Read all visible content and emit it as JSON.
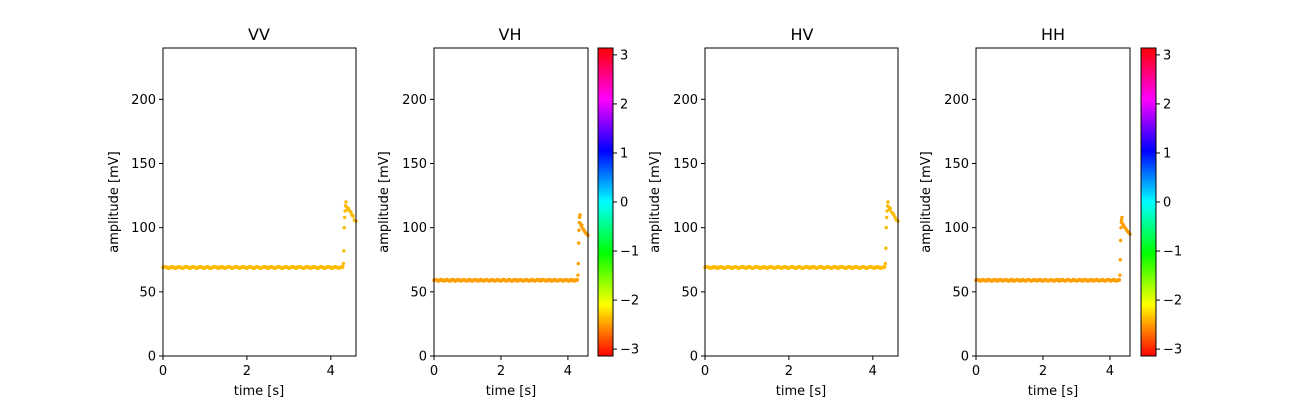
{
  "chart_data": [
    {
      "type": "scatter",
      "title": "VV",
      "xlabel": "time [s]",
      "ylabel": "amplitude [mV]",
      "xlim": [
        0,
        4.6
      ],
      "ylim": [
        0,
        240
      ],
      "xticks": [
        "0",
        "2",
        "4"
      ],
      "yticks": [
        "0",
        "50",
        "100",
        "150",
        "200"
      ],
      "xtick_values": [
        0,
        2,
        4
      ],
      "ytick_values": [
        0,
        50,
        100,
        150,
        200
      ],
      "grid": false,
      "point_color": "#fcbb00",
      "baseline": 69,
      "points": [
        [
          0.0,
          69
        ],
        [
          0.1,
          69.2
        ],
        [
          0.2,
          68.8
        ],
        [
          0.3,
          69.1
        ],
        [
          0.4,
          69.0
        ],
        [
          0.5,
          68.7
        ],
        [
          0.6,
          69.3
        ],
        [
          0.7,
          69.0
        ],
        [
          0.8,
          68.9
        ],
        [
          0.9,
          69.2
        ],
        [
          1.0,
          69.0
        ],
        [
          1.1,
          68.6
        ],
        [
          1.2,
          69.4
        ],
        [
          1.3,
          69.1
        ],
        [
          1.4,
          68.8
        ],
        [
          1.5,
          69.0
        ],
        [
          1.6,
          69.3
        ],
        [
          1.7,
          68.9
        ],
        [
          1.8,
          69.1
        ],
        [
          1.9,
          69.0
        ],
        [
          2.0,
          68.8
        ],
        [
          2.1,
          69.2
        ],
        [
          2.2,
          69.0
        ],
        [
          2.3,
          68.7
        ],
        [
          2.4,
          69.1
        ],
        [
          2.5,
          69.3
        ],
        [
          2.6,
          69.0
        ],
        [
          2.7,
          68.9
        ],
        [
          2.8,
          69.2
        ],
        [
          2.9,
          69.0
        ],
        [
          3.0,
          68.8
        ],
        [
          3.1,
          69.1
        ],
        [
          3.2,
          69.4
        ],
        [
          3.3,
          69.0
        ],
        [
          3.4,
          68.9
        ],
        [
          3.5,
          69.2
        ],
        [
          3.6,
          69.0
        ],
        [
          3.7,
          68.8
        ],
        [
          3.8,
          69.1
        ],
        [
          3.9,
          69.0
        ],
        [
          4.0,
          69.2
        ],
        [
          4.1,
          68.9
        ],
        [
          4.2,
          69.0
        ],
        [
          4.28,
          69.1
        ],
        [
          4.3,
          72
        ],
        [
          4.31,
          82
        ],
        [
          4.32,
          100
        ],
        [
          4.33,
          108
        ],
        [
          4.34,
          113
        ],
        [
          4.35,
          117
        ],
        [
          4.36,
          120
        ],
        [
          4.38,
          116
        ],
        [
          4.4,
          114
        ],
        [
          4.42,
          115
        ],
        [
          4.45,
          113
        ],
        [
          4.48,
          112
        ],
        [
          4.5,
          110
        ],
        [
          4.53,
          109
        ],
        [
          4.56,
          106
        ],
        [
          4.6,
          105
        ]
      ]
    },
    {
      "type": "scatter",
      "title": "VH",
      "xlabel": "time [s]",
      "ylabel": "amplitude [mV]",
      "xlim": [
        0,
        4.6
      ],
      "ylim": [
        0,
        240
      ],
      "xticks": [
        "0",
        "2",
        "4"
      ],
      "yticks": [
        "0",
        "50",
        "100",
        "150",
        "200"
      ],
      "xtick_values": [
        0,
        2,
        4
      ],
      "ytick_values": [
        0,
        50,
        100,
        150,
        200
      ],
      "grid": false,
      "point_color": "#ff9f00",
      "baseline": 59,
      "colorbar": {
        "range": [
          -3.14,
          3.14
        ],
        "ticks": [
          "3",
          "2",
          "1",
          "0",
          "−1",
          "−2",
          "−3"
        ],
        "tick_values": [
          3,
          2,
          1,
          0,
          -1,
          -2,
          -3
        ]
      },
      "points": [
        [
          0.0,
          59
        ],
        [
          0.1,
          59.2
        ],
        [
          0.2,
          58.8
        ],
        [
          0.3,
          59.1
        ],
        [
          0.4,
          59.0
        ],
        [
          0.5,
          58.7
        ],
        [
          0.6,
          59.3
        ],
        [
          0.7,
          59.0
        ],
        [
          0.8,
          58.9
        ],
        [
          0.9,
          59.2
        ],
        [
          1.0,
          59.0
        ],
        [
          1.1,
          58.6
        ],
        [
          1.2,
          59.4
        ],
        [
          1.3,
          59.1
        ],
        [
          1.4,
          58.8
        ],
        [
          1.5,
          59.0
        ],
        [
          1.6,
          59.3
        ],
        [
          1.7,
          58.9
        ],
        [
          1.8,
          59.1
        ],
        [
          1.9,
          59.0
        ],
        [
          2.0,
          58.8
        ],
        [
          2.1,
          59.2
        ],
        [
          2.2,
          59.0
        ],
        [
          2.3,
          58.7
        ],
        [
          2.4,
          59.1
        ],
        [
          2.5,
          59.3
        ],
        [
          2.6,
          59.0
        ],
        [
          2.7,
          58.9
        ],
        [
          2.8,
          59.2
        ],
        [
          2.9,
          59.0
        ],
        [
          3.0,
          58.8
        ],
        [
          3.1,
          59.1
        ],
        [
          3.2,
          59.4
        ],
        [
          3.3,
          59.0
        ],
        [
          3.4,
          58.9
        ],
        [
          3.5,
          59.2
        ],
        [
          3.6,
          59.0
        ],
        [
          3.7,
          58.8
        ],
        [
          3.8,
          59.1
        ],
        [
          3.9,
          59.0
        ],
        [
          4.0,
          59.2
        ],
        [
          4.1,
          58.9
        ],
        [
          4.2,
          59.0
        ],
        [
          4.28,
          59.1
        ],
        [
          4.3,
          63
        ],
        [
          4.31,
          72
        ],
        [
          4.32,
          88
        ],
        [
          4.33,
          98
        ],
        [
          4.34,
          104
        ],
        [
          4.35,
          108
        ],
        [
          4.36,
          110
        ],
        [
          4.38,
          103
        ],
        [
          4.4,
          101
        ],
        [
          4.42,
          102
        ],
        [
          4.45,
          99
        ],
        [
          4.48,
          98
        ],
        [
          4.5,
          97
        ],
        [
          4.53,
          96
        ],
        [
          4.56,
          95
        ],
        [
          4.6,
          94
        ]
      ]
    },
    {
      "type": "scatter",
      "title": "HV",
      "xlabel": "time [s]",
      "ylabel": "amplitude [mV]",
      "xlim": [
        0,
        4.6
      ],
      "ylim": [
        0,
        240
      ],
      "xticks": [
        "0",
        "2",
        "4"
      ],
      "yticks": [
        "0",
        "50",
        "100",
        "150",
        "200"
      ],
      "xtick_values": [
        0,
        2,
        4
      ],
      "ytick_values": [
        0,
        50,
        100,
        150,
        200
      ],
      "grid": false,
      "point_color": "#fcbb00",
      "baseline": 69,
      "points": [
        [
          0.0,
          69
        ],
        [
          0.1,
          69.2
        ],
        [
          0.2,
          68.8
        ],
        [
          0.3,
          69.1
        ],
        [
          0.4,
          69.0
        ],
        [
          0.5,
          68.7
        ],
        [
          0.6,
          69.3
        ],
        [
          0.7,
          69.0
        ],
        [
          0.8,
          68.9
        ],
        [
          0.9,
          69.2
        ],
        [
          1.0,
          69.0
        ],
        [
          1.1,
          68.6
        ],
        [
          1.2,
          69.4
        ],
        [
          1.3,
          69.1
        ],
        [
          1.4,
          68.8
        ],
        [
          1.5,
          69.0
        ],
        [
          1.6,
          69.3
        ],
        [
          1.7,
          68.9
        ],
        [
          1.8,
          69.1
        ],
        [
          1.9,
          69.0
        ],
        [
          2.0,
          68.8
        ],
        [
          2.1,
          69.2
        ],
        [
          2.2,
          69.0
        ],
        [
          2.3,
          68.7
        ],
        [
          2.4,
          69.1
        ],
        [
          2.5,
          69.3
        ],
        [
          2.6,
          69.0
        ],
        [
          2.7,
          68.9
        ],
        [
          2.8,
          69.2
        ],
        [
          2.9,
          69.0
        ],
        [
          3.0,
          68.8
        ],
        [
          3.1,
          69.1
        ],
        [
          3.2,
          69.4
        ],
        [
          3.3,
          69.0
        ],
        [
          3.4,
          68.9
        ],
        [
          3.5,
          69.2
        ],
        [
          3.6,
          69.0
        ],
        [
          3.7,
          68.8
        ],
        [
          3.8,
          69.1
        ],
        [
          3.9,
          69.0
        ],
        [
          4.0,
          69.2
        ],
        [
          4.1,
          68.9
        ],
        [
          4.2,
          69.0
        ],
        [
          4.28,
          69.1
        ],
        [
          4.3,
          72
        ],
        [
          4.31,
          84
        ],
        [
          4.32,
          100
        ],
        [
          4.33,
          108
        ],
        [
          4.34,
          113
        ],
        [
          4.35,
          117
        ],
        [
          4.36,
          120
        ],
        [
          4.38,
          116
        ],
        [
          4.4,
          114
        ],
        [
          4.42,
          115
        ],
        [
          4.45,
          112
        ],
        [
          4.48,
          111
        ],
        [
          4.5,
          110
        ],
        [
          4.53,
          108
        ],
        [
          4.56,
          106
        ],
        [
          4.6,
          105
        ]
      ]
    },
    {
      "type": "scatter",
      "title": "HH",
      "xlabel": "time [s]",
      "ylabel": "amplitude [mV]",
      "xlim": [
        0,
        4.6
      ],
      "ylim": [
        0,
        240
      ],
      "xticks": [
        "0",
        "2",
        "4"
      ],
      "yticks": [
        "0",
        "50",
        "100",
        "150",
        "200"
      ],
      "xtick_values": [
        0,
        2,
        4
      ],
      "ytick_values": [
        0,
        50,
        100,
        150,
        200
      ],
      "grid": false,
      "point_color": "#ff9f00",
      "baseline": 59,
      "colorbar": {
        "range": [
          -3.14,
          3.14
        ],
        "ticks": [
          "3",
          "2",
          "1",
          "0",
          "−1",
          "−2",
          "−3"
        ],
        "tick_values": [
          3,
          2,
          1,
          0,
          -1,
          -2,
          -3
        ]
      },
      "points": [
        [
          0.0,
          59
        ],
        [
          0.1,
          59.2
        ],
        [
          0.2,
          58.8
        ],
        [
          0.3,
          59.1
        ],
        [
          0.4,
          59.0
        ],
        [
          0.5,
          58.7
        ],
        [
          0.6,
          59.3
        ],
        [
          0.7,
          59.0
        ],
        [
          0.8,
          58.9
        ],
        [
          0.9,
          59.2
        ],
        [
          1.0,
          59.0
        ],
        [
          1.1,
          58.6
        ],
        [
          1.2,
          59.4
        ],
        [
          1.3,
          59.1
        ],
        [
          1.4,
          58.8
        ],
        [
          1.5,
          59.0
        ],
        [
          1.6,
          59.3
        ],
        [
          1.7,
          58.9
        ],
        [
          1.8,
          59.1
        ],
        [
          1.9,
          59.0
        ],
        [
          2.0,
          58.8
        ],
        [
          2.1,
          59.2
        ],
        [
          2.2,
          59.0
        ],
        [
          2.3,
          58.7
        ],
        [
          2.4,
          59.1
        ],
        [
          2.5,
          59.3
        ],
        [
          2.6,
          59.0
        ],
        [
          2.7,
          58.9
        ],
        [
          2.8,
          59.2
        ],
        [
          2.9,
          59.0
        ],
        [
          3.0,
          58.8
        ],
        [
          3.1,
          59.1
        ],
        [
          3.2,
          59.4
        ],
        [
          3.3,
          59.0
        ],
        [
          3.4,
          58.9
        ],
        [
          3.5,
          59.2
        ],
        [
          3.6,
          59.0
        ],
        [
          3.7,
          58.8
        ],
        [
          3.8,
          59.1
        ],
        [
          3.9,
          59.0
        ],
        [
          4.0,
          59.2
        ],
        [
          4.1,
          58.9
        ],
        [
          4.2,
          59.0
        ],
        [
          4.28,
          59.1
        ],
        [
          4.3,
          63
        ],
        [
          4.31,
          75
        ],
        [
          4.32,
          90
        ],
        [
          4.33,
          100
        ],
        [
          4.34,
          104
        ],
        [
          4.35,
          106
        ],
        [
          4.36,
          108
        ],
        [
          4.38,
          103
        ],
        [
          4.4,
          102
        ],
        [
          4.42,
          101
        ],
        [
          4.45,
          100
        ],
        [
          4.48,
          99
        ],
        [
          4.5,
          98
        ],
        [
          4.53,
          97
        ],
        [
          4.56,
          96
        ],
        [
          4.6,
          95
        ]
      ]
    }
  ]
}
